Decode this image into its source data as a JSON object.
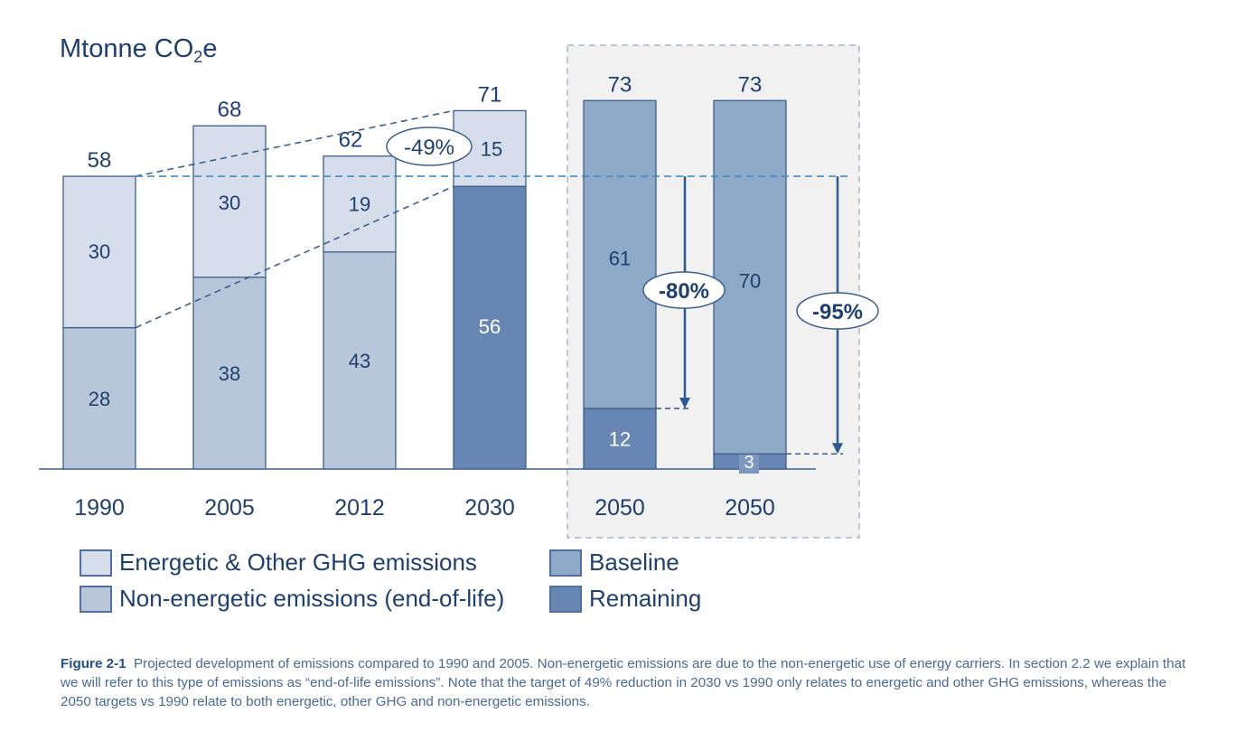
{
  "unit_title": {
    "text": "Mtonne CO",
    "sub": "2",
    "suffix": "e"
  },
  "colors": {
    "energetic": "#d5deea",
    "non_energetic": "#b7c7d9",
    "baseline": "#8eaac8",
    "remaining": "#6786b4",
    "edge": "#3d5f8e",
    "label": "#1f3f6e",
    "reference_line": "#3d8fc9",
    "connector": "#3d5f8e",
    "arrow": "#2c5a90",
    "highlight_bg": "#f1f1f1",
    "highlight_border": "#a9b8c8"
  },
  "chart_data": {
    "type": "bar",
    "stacked": true,
    "title": "Mtonne CO2e",
    "ylabel": "Mtonne CO2e",
    "xlabel": "",
    "ylim": [
      0,
      75
    ],
    "grid": false,
    "categories": [
      "1990",
      "2005",
      "2012",
      "2030",
      "2050",
      "2050"
    ],
    "totals": [
      58,
      68,
      62,
      71,
      73,
      73
    ],
    "series": [
      {
        "name": "Non-energetic emissions (end-of-life)",
        "key": "non_energetic",
        "values": [
          28,
          38,
          43,
          null,
          null,
          null
        ]
      },
      {
        "name": "Remaining",
        "key": "remaining",
        "values": [
          null,
          null,
          null,
          56,
          12,
          3
        ]
      },
      {
        "name": "Energetic & Other GHG emissions",
        "key": "energetic",
        "values": [
          30,
          30,
          19,
          15,
          null,
          null
        ]
      },
      {
        "name": "Baseline",
        "key": "baseline",
        "values": [
          null,
          null,
          null,
          null,
          61,
          70
        ]
      }
    ],
    "segment_labels": [
      [
        "28",
        "30"
      ],
      [
        "38",
        "30"
      ],
      [
        "43",
        "19"
      ],
      [
        "56",
        "15"
      ],
      [
        "12",
        "61"
      ],
      [
        "3",
        "70"
      ]
    ],
    "annotations": [
      {
        "text": "-49%",
        "type": "ellipse",
        "relates": "2030 energetic vs 1990 energetic"
      },
      {
        "text": "-80%",
        "type": "ellipse-arrow",
        "from_value": 58,
        "to_value": 12,
        "category_index": 4
      },
      {
        "text": "-95%",
        "type": "ellipse-arrow",
        "from_value": 58,
        "to_value": 3,
        "category_index": 5
      }
    ],
    "reference_line": {
      "value": 58,
      "label": "1990 total"
    },
    "highlight_group": {
      "category_indices": [
        4,
        5
      ]
    },
    "legend": {
      "placement": "bottom",
      "entries": [
        {
          "label": "Energetic & Other GHG emissions",
          "key": "energetic"
        },
        {
          "label": "Baseline",
          "key": "baseline"
        },
        {
          "label": "Non-energetic emissions (end-of-life)",
          "key": "non_energetic"
        },
        {
          "label": "Remaining",
          "key": "remaining"
        }
      ]
    }
  },
  "caption": {
    "label": "Figure 2-1",
    "text": "Projected development of emissions compared to 1990 and 2005. Non-energetic emissions are due to the non-energetic use of energy carriers. In section 2.2 we explain that we will refer to this type of emissions as “end-of-life emissions”. Note that the target of 49% reduction in 2030 vs 1990 only relates to energetic and other GHG emissions, whereas the 2050 targets vs 1990 relate to both energetic, other GHG and non-energetic emissions."
  }
}
